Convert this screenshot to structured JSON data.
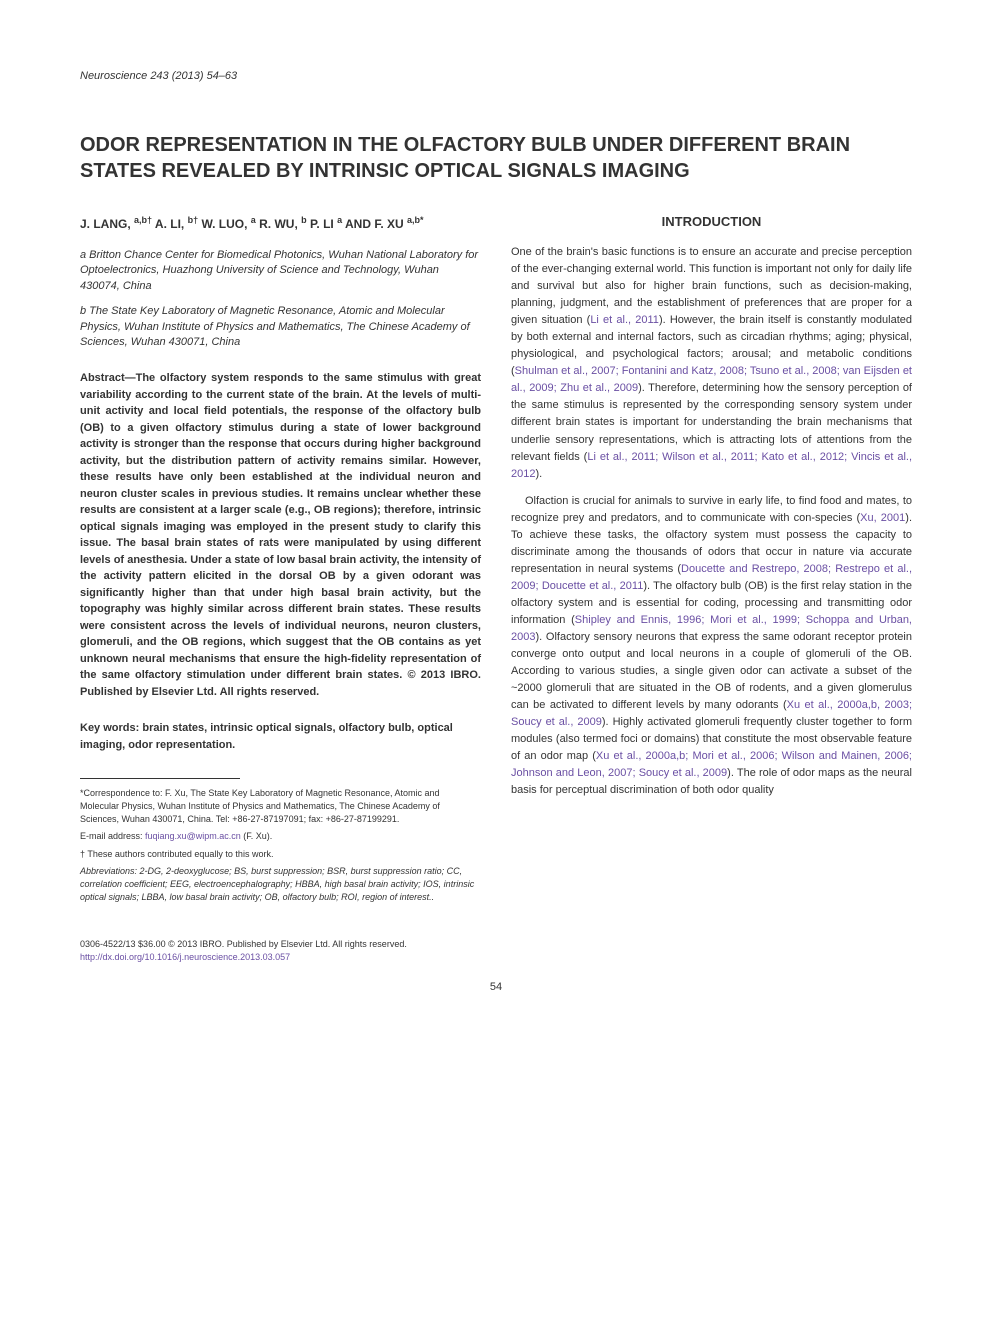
{
  "journal_ref": "Neuroscience 243 (2013) 54–63",
  "title": "ODOR REPRESENTATION IN THE OLFACTORY BULB UNDER DIFFERENT BRAIN STATES REVEALED BY INTRINSIC OPTICAL SIGNALS IMAGING",
  "authors_line1": "J. LANG, ",
  "authors_sup1": "a,b†",
  "authors_line2": " A. LI, ",
  "authors_sup2": "b†",
  "authors_line3": " W. LUO, ",
  "authors_sup3": "a",
  "authors_line4": " R. WU, ",
  "authors_sup4": "b",
  "authors_line5": " P. LI ",
  "authors_sup5": "a",
  "authors_line6": " AND F. XU ",
  "authors_sup6": "a,b*",
  "affiliation_a": "a Britton Chance Center for Biomedical Photonics, Wuhan National Laboratory for Optoelectronics, Huazhong University of Science and Technology, Wuhan 430074, China",
  "affiliation_b": "b The State Key Laboratory of Magnetic Resonance, Atomic and Molecular Physics, Wuhan Institute of Physics and Mathematics, The Chinese Academy of Sciences, Wuhan 430071, China",
  "abstract_text": "Abstract—The olfactory system responds to the same stimulus with great variability according to the current state of the brain. At the levels of multi-unit activity and local field potentials, the response of the olfactory bulb (OB) to a given olfactory stimulus during a state of lower background activity is stronger than the response that occurs during higher background activity, but the distribution pattern of activity remains similar. However, these results have only been established at the individual neuron and neuron cluster scales in previous studies. It remains unclear whether these results are consistent at a larger scale (e.g., OB regions); therefore, intrinsic optical signals imaging was employed in the present study to clarify this issue. The basal brain states of rats were manipulated by using different levels of anesthesia. Under a state of low basal brain activity, the intensity of the activity pattern elicited in the dorsal OB by a given odorant was significantly higher than that under high basal brain activity, but the topography was highly similar across different brain states. These results were consistent across the levels of individual neurons, neuron clusters, glomeruli, and the OB regions, which suggest that the OB contains as yet unknown neural mechanisms that ensure the high-fidelity representation of the same olfactory stimulation under different brain states. © 2013 IBRO. Published by Elsevier Ltd. All rights reserved.",
  "keywords": "Key words: brain states, intrinsic optical signals, olfactory bulb, optical imaging, odor representation.",
  "footnote_corr": "*Correspondence to: F. Xu, The State Key Laboratory of Magnetic Resonance, Atomic and Molecular Physics, Wuhan Institute of Physics and Mathematics, The Chinese Academy of Sciences, Wuhan 430071, China. Tel: +86-27-87197091; fax: +86-27-87199291.",
  "footnote_email_label": "E-mail address: ",
  "footnote_email": "fuqiang.xu@wipm.ac.cn",
  "footnote_email_suffix": " (F. Xu).",
  "footnote_contrib": "† These authors contributed equally to this work.",
  "footnote_abbrev": "Abbreviations: 2-DG, 2-deoxyglucose; BS, burst suppression; BSR, burst suppression ratio; CC, correlation coefficient; EEG, electroencephalography; HBBA, high basal brain activity; IOS, intrinsic optical signals; LBBA, low basal brain activity; OB, olfactory bulb; ROI, region of interest..",
  "intro_heading": "INTRODUCTION",
  "intro_p1_a": "One of the brain's basic functions is to ensure an accurate and precise perception of the ever-changing external world. This function is important not only for daily life and survival but also for higher brain functions, such as decision-making, planning, judgment, and the establishment of preferences that are proper for a given situation (",
  "intro_p1_c1": "Li et al., 2011",
  "intro_p1_b": "). However, the brain itself is constantly modulated by both external and internal factors, such as circadian rhythms; aging; physical, physiological, and psychological factors; arousal; and metabolic conditions (",
  "intro_p1_c2": "Shulman et al., 2007; Fontanini and Katz, 2008; Tsuno et al., 2008; van Eijsden et al., 2009; Zhu et al., 2009",
  "intro_p1_c": "). Therefore, determining how the sensory perception of the same stimulus is represented by the corresponding sensory system under different brain states is important for understanding the brain mechanisms that underlie sensory representations, which is attracting lots of attentions from the relevant fields (",
  "intro_p1_c3": "Li et al., 2011; Wilson et al., 2011; Kato et al., 2012; Vincis et al., 2012",
  "intro_p1_d": ").",
  "intro_p2_a": "Olfaction is crucial for animals to survive in early life, to find food and mates, to recognize prey and predators, and to communicate with con-species (",
  "intro_p2_c1": "Xu, 2001",
  "intro_p2_b": "). To achieve these tasks, the olfactory system must possess the capacity to discriminate among the thousands of odors that occur in nature via accurate representation in neural systems (",
  "intro_p2_c2": "Doucette and Restrepo, 2008; Restrepo et al., 2009; Doucette et al., 2011",
  "intro_p2_c": "). The olfactory bulb (OB) is the first relay station in the olfactory system and is essential for coding, processing and transmitting odor information (",
  "intro_p2_c3": "Shipley and Ennis, 1996; Mori et al., 1999; Schoppa and Urban, 2003",
  "intro_p2_d": "). Olfactory sensory neurons that express the same odorant receptor protein converge onto output and local neurons in a couple of glomeruli of the OB. According to various studies, a single given odor can activate a subset of the ~2000 glomeruli that are situated in the OB of rodents, and a given glomerulus can be activated to different levels by many odorants (",
  "intro_p2_c4": "Xu et al., 2000a,b, 2003; Soucy et al., 2009",
  "intro_p2_e": "). Highly activated glomeruli frequently cluster together to form modules (also termed foci or domains) that constitute the most observable feature of an odor map (",
  "intro_p2_c5": "Xu et al., 2000a,b; Mori et al., 2006; Wilson and Mainen, 2006; Johnson and Leon, 2007; Soucy et al., 2009",
  "intro_p2_f": "). The role of odor maps as the neural basis for perceptual discrimination of both odor quality",
  "copyright": "0306-4522/13 $36.00 © 2013 IBRO. Published by Elsevier Ltd. All rights reserved.",
  "doi": "http://dx.doi.org/10.1016/j.neuroscience.2013.03.057",
  "page_number": "54",
  "colors": {
    "citation": "#6a4fa3",
    "text": "#333333",
    "background": "#ffffff"
  }
}
